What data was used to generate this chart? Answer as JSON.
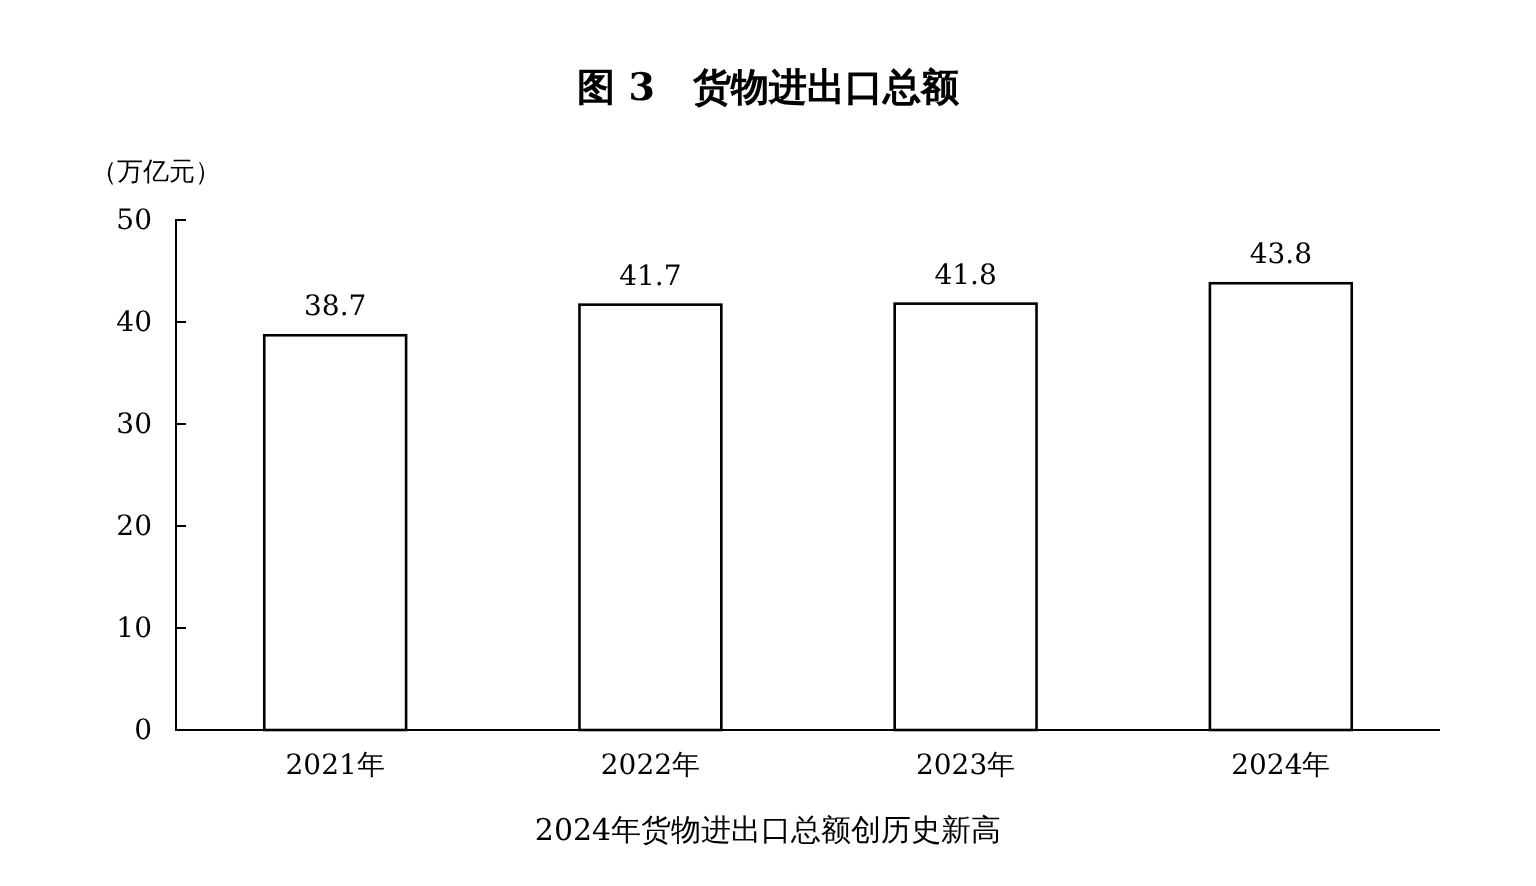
{
  "chart_data": {
    "type": "bar",
    "title": "图 3　货物进出口总额",
    "ylabel": "（万亿元）",
    "categories": [
      "2021年",
      "2022年",
      "2023年",
      "2024年"
    ],
    "values": [
      38.7,
      41.7,
      41.8,
      43.8
    ],
    "color": "#ffffff",
    "ylim": [
      0,
      50
    ],
    "yticks": [
      0,
      10,
      20,
      30,
      40,
      50
    ],
    "grid": false,
    "data_labels": true,
    "annotations": [
      "2024年货物进出口总额创历史新高"
    ]
  }
}
